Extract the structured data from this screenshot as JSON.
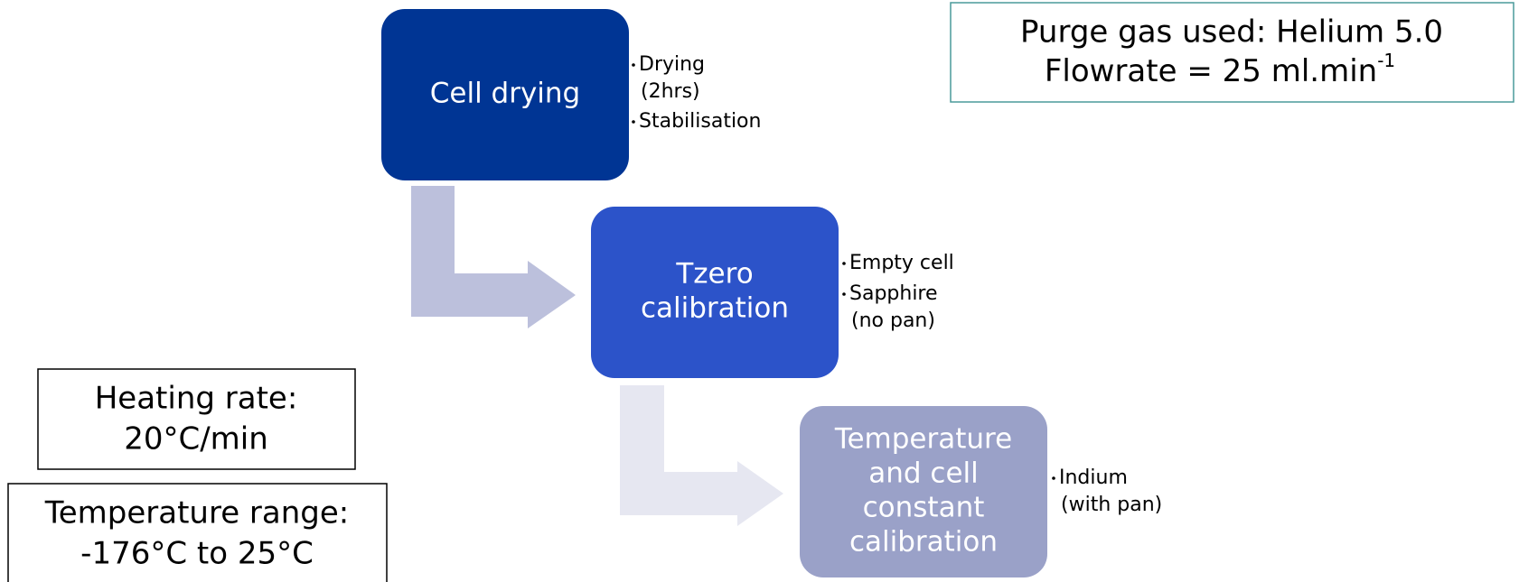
{
  "steps": [
    {
      "label": [
        "Cell drying"
      ],
      "bullets": [
        [
          "Drying",
          "(2hrs)"
        ],
        [
          "Stabilisation"
        ]
      ]
    },
    {
      "label": [
        "Tzero",
        "calibration"
      ],
      "bullets": [
        [
          "Empty cell"
        ],
        [
          "Sapphire",
          "(no pan)"
        ]
      ]
    },
    {
      "label": [
        "Temperature",
        "and cell",
        "constant",
        "calibration"
      ],
      "bullets": [
        [
          "Indium",
          "(with pan)"
        ]
      ]
    }
  ],
  "purge_box": {
    "line1": "Purge gas used: Helium 5.0",
    "line2": "Flowrate = 25 ml.min",
    "line2_sup": "-1"
  },
  "heating_box": {
    "lines": [
      "Heating rate:",
      "20°C/min"
    ]
  },
  "range_box": {
    "lines": [
      "Temperature range:",
      "-176°C to 25°C"
    ]
  }
}
